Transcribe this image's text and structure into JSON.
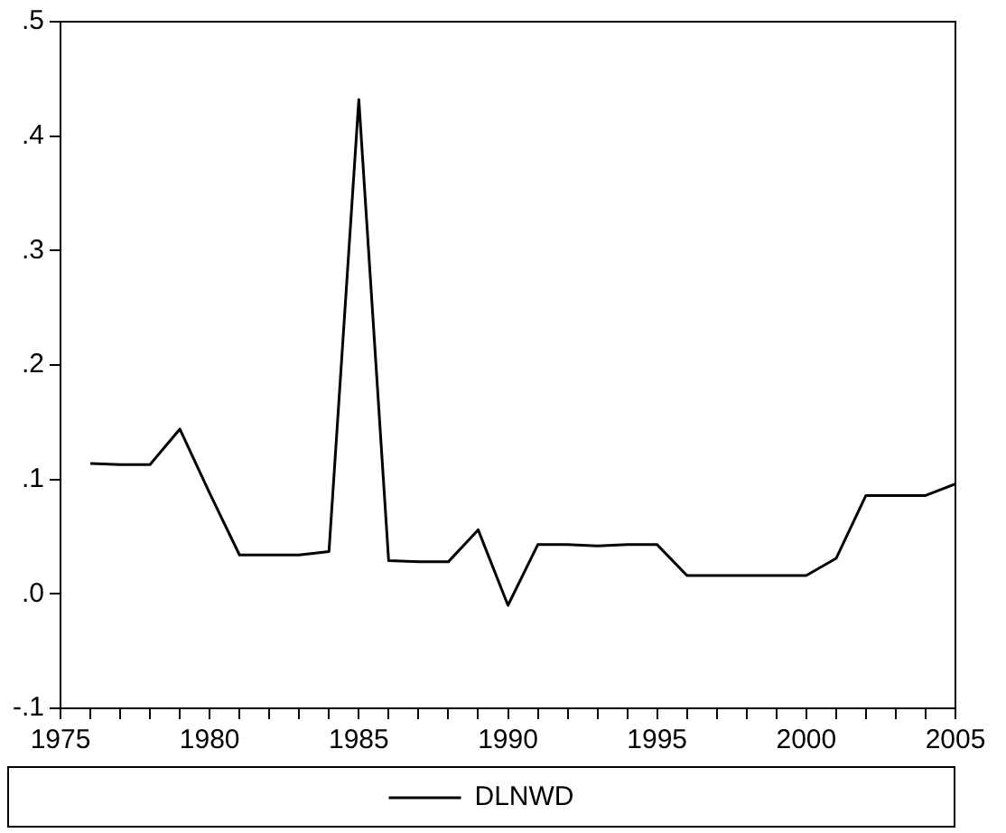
{
  "chart_data": {
    "type": "line",
    "x": [
      1976,
      1977,
      1978,
      1979,
      1980,
      1981,
      1982,
      1983,
      1984,
      1985,
      1986,
      1987,
      1988,
      1989,
      1990,
      1991,
      1992,
      1993,
      1994,
      1995,
      1996,
      1997,
      1998,
      1999,
      2000,
      2001,
      2002,
      2003,
      2004,
      2005
    ],
    "series": [
      {
        "name": "DLNWD",
        "color": "#000000",
        "values": [
          0.114,
          0.113,
          0.113,
          0.144,
          0.088,
          0.034,
          0.034,
          0.034,
          0.037,
          0.432,
          0.029,
          0.028,
          0.028,
          0.056,
          -0.01,
          0.043,
          0.043,
          0.042,
          0.043,
          0.043,
          0.016,
          0.016,
          0.016,
          0.016,
          0.016,
          0.031,
          0.086,
          0.086,
          0.086,
          0.096
        ]
      }
    ],
    "xlim": [
      1975,
      2005
    ],
    "xticks": [
      1975,
      {
        "value": 1976,
        "label": null
      },
      {
        "value": 1977,
        "label": null
      },
      {
        "value": 1978,
        "label": null
      },
      {
        "value": 1979,
        "label": null
      },
      1980,
      {
        "value": 1981,
        "label": null
      },
      {
        "value": 1982,
        "label": null
      },
      {
        "value": 1983,
        "label": null
      },
      {
        "value": 1984,
        "label": null
      },
      1985,
      {
        "value": 1986,
        "label": null
      },
      {
        "value": 1987,
        "label": null
      },
      {
        "value": 1988,
        "label": null
      },
      {
        "value": 1989,
        "label": null
      },
      1990,
      {
        "value": 1991,
        "label": null
      },
      {
        "value": 1992,
        "label": null
      },
      {
        "value": 1993,
        "label": null
      },
      {
        "value": 1994,
        "label": null
      },
      1995,
      {
        "value": 1996,
        "label": null
      },
      {
        "value": 1997,
        "label": null
      },
      {
        "value": 1998,
        "label": null
      },
      {
        "value": 1999,
        "label": null
      },
      2000,
      {
        "value": 2001,
        "label": null
      },
      {
        "value": 2002,
        "label": null
      },
      {
        "value": 2003,
        "label": null
      },
      {
        "value": 2004,
        "label": null
      },
      2005
    ],
    "ylim": [
      -0.1,
      0.5
    ],
    "yticks": [
      {
        "value": -0.1,
        "label": "-.1"
      },
      {
        "value": 0,
        "label": ".0"
      },
      {
        "value": 0.1,
        "label": ".1"
      },
      {
        "value": 0.2,
        "label": ".2"
      },
      {
        "value": 0.3,
        "label": ".3"
      },
      {
        "value": 0.4,
        "label": ".4"
      },
      {
        "value": 0.5,
        "label": ".5"
      }
    ],
    "grid": false,
    "legend": "bottom",
    "marker": "none",
    "line_style": "solid"
  }
}
